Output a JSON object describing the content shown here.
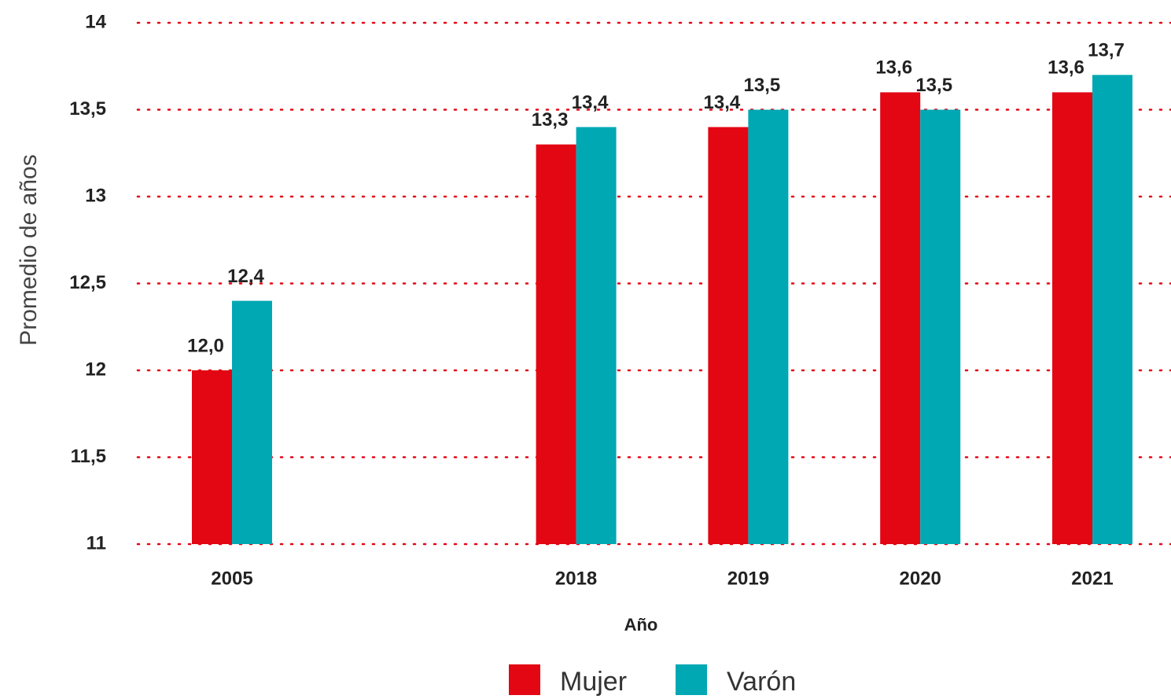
{
  "chart_data": {
    "type": "bar",
    "x_label": "Año",
    "y_label": "Promedio de años",
    "categories": [
      "2005",
      "2018",
      "2019",
      "2020",
      "2021"
    ],
    "series": [
      {
        "name": "Mujer",
        "color": "#e30613",
        "values": [
          12.0,
          13.3,
          13.4,
          13.6,
          13.6
        ],
        "value_labels": [
          "12,0",
          "13,3",
          "13,4",
          "13,6",
          "13,6"
        ]
      },
      {
        "name": "Varón",
        "color": "#00a8b3",
        "values": [
          12.4,
          13.4,
          13.5,
          13.5,
          13.7
        ],
        "value_labels": [
          "12,4",
          "13,4",
          "13,5",
          "13,5",
          "13,7"
        ]
      }
    ],
    "ylim": [
      11,
      14
    ],
    "yticks": [
      11,
      {
        "value": 11.5,
        "label": "11,5"
      },
      12,
      {
        "value": 12.5,
        "label": "12,5"
      },
      13,
      {
        "value": 13.5,
        "label": "13,5"
      },
      14
    ],
    "grid": true,
    "grid_color": "#e30613",
    "legend": "bottom"
  }
}
